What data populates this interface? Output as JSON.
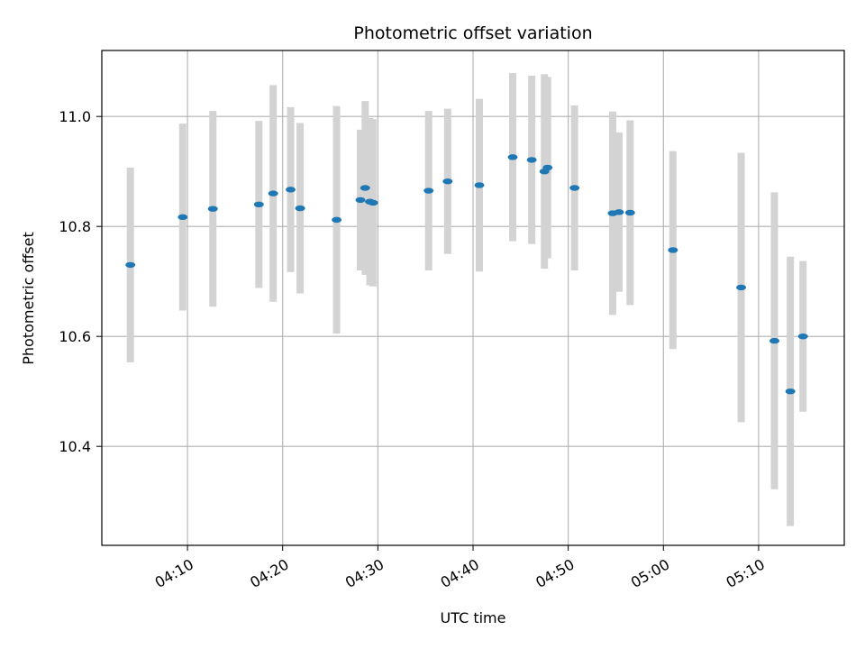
{
  "chart_data": {
    "type": "scatter",
    "title": "Photometric offset variation",
    "xlabel": "UTC time",
    "ylabel": "Photometric offset",
    "x_axis": "time",
    "x_range": [
      "04:01:00",
      "05:19:00"
    ],
    "x_ticks": [
      "04:10",
      "04:20",
      "04:30",
      "04:40",
      "04:50",
      "05:00",
      "05:10"
    ],
    "ylim": [
      10.22,
      11.12
    ],
    "y_ticks": [
      "10.4",
      "10.6",
      "10.8",
      "11.0"
    ],
    "grid": true,
    "marker_color": "#1f77b4",
    "errorbar_color": "#d3d3d3",
    "series": [
      {
        "points": [
          {
            "x": "04:04:00",
            "y": 10.73,
            "err": 0.177
          },
          {
            "x": "04:09:30",
            "y": 10.817,
            "err": 0.17
          },
          {
            "x": "04:12:40",
            "y": 10.832,
            "err": 0.178
          },
          {
            "x": "04:17:30",
            "y": 10.84,
            "err": 0.152
          },
          {
            "x": "04:19:00",
            "y": 10.86,
            "err": 0.197
          },
          {
            "x": "04:20:50",
            "y": 10.867,
            "err": 0.15
          },
          {
            "x": "04:21:50",
            "y": 10.833,
            "err": 0.155
          },
          {
            "x": "04:25:40",
            "y": 10.812,
            "err": 0.207
          },
          {
            "x": "04:28:10",
            "y": 10.848,
            "err": 0.128
          },
          {
            "x": "04:28:40",
            "y": 10.87,
            "err": 0.158
          },
          {
            "x": "04:29:10",
            "y": 10.845,
            "err": 0.152
          },
          {
            "x": "04:29:30",
            "y": 10.843,
            "err": 0.152
          },
          {
            "x": "04:35:20",
            "y": 10.865,
            "err": 0.145
          },
          {
            "x": "04:37:20",
            "y": 10.882,
            "err": 0.132
          },
          {
            "x": "04:40:40",
            "y": 10.875,
            "err": 0.157
          },
          {
            "x": "04:44:10",
            "y": 10.926,
            "err": 0.153
          },
          {
            "x": "04:46:10",
            "y": 10.921,
            "err": 0.153
          },
          {
            "x": "04:47:30",
            "y": 10.9,
            "err": 0.177
          },
          {
            "x": "04:47:50",
            "y": 10.907,
            "err": 0.165
          },
          {
            "x": "04:50:40",
            "y": 10.87,
            "err": 0.15
          },
          {
            "x": "04:54:40",
            "y": 10.824,
            "err": 0.185
          },
          {
            "x": "04:55:20",
            "y": 10.826,
            "err": 0.145
          },
          {
            "x": "04:56:30",
            "y": 10.825,
            "err": 0.168
          },
          {
            "x": "05:01:00",
            "y": 10.757,
            "err": 0.18
          },
          {
            "x": "05:08:10",
            "y": 10.689,
            "err": 0.245
          },
          {
            "x": "05:11:40",
            "y": 10.592,
            "err": 0.27
          },
          {
            "x": "05:13:20",
            "y": 10.5,
            "err": 0.245
          },
          {
            "x": "05:14:40",
            "y": 10.6,
            "err": 0.137
          }
        ]
      }
    ]
  }
}
